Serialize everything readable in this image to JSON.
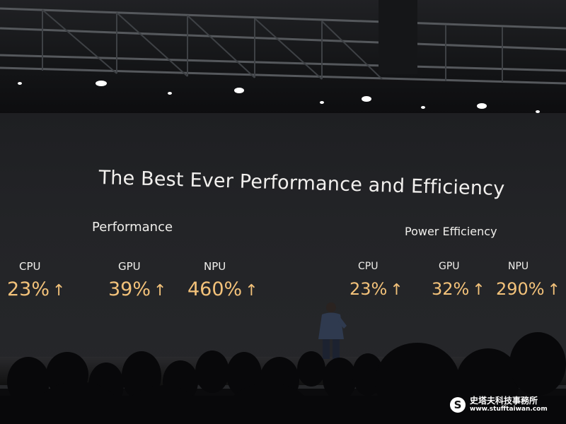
{
  "slide": {
    "title": "The Best Ever Performance and Efficiency",
    "value_color": "#f3c27a",
    "text_color": "#f0efec",
    "performance": {
      "label": "Performance",
      "metrics": [
        {
          "name": "CPU",
          "value": "23%",
          "arrow": "↑"
        },
        {
          "name": "GPU",
          "value": "39%",
          "arrow": "↑"
        },
        {
          "name": "NPU",
          "value": "460%",
          "arrow": "↑"
        }
      ]
    },
    "efficiency": {
      "label": "Power Efficiency",
      "metrics": [
        {
          "name": "CPU",
          "value": "23%",
          "arrow": "↑"
        },
        {
          "name": "GPU",
          "value": "32%",
          "arrow": "↑"
        },
        {
          "name": "NPU",
          "value": "290%",
          "arrow": "↑"
        }
      ]
    }
  },
  "watermark": {
    "icon": "S",
    "name": "史塔夫科技事務所",
    "url": "www.stufftaiwan.com"
  }
}
